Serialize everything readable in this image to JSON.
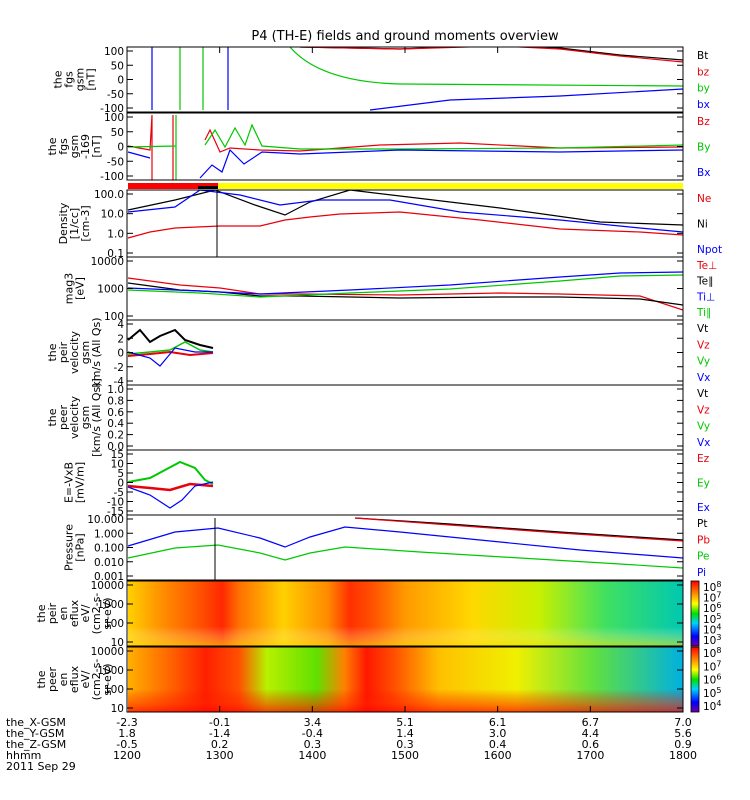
{
  "chart_data": {
    "type": "line",
    "title": "P4 (TH-E) fields and ground moments overview",
    "panels": [
      {
        "ylabel_lines": [
          "the",
          "fgs",
          "gsm",
          "[nT]"
        ],
        "ticks": [
          "100",
          "50",
          "0",
          "-50",
          "-100"
        ],
        "series": [
          {
            "name": "Bt",
            "color": "#000000"
          },
          {
            "name": "bz",
            "color": "#e8000b"
          },
          {
            "name": "by",
            "color": "#00c800"
          },
          {
            "name": "bx",
            "color": "#0000ff"
          }
        ]
      },
      {
        "ylabel_lines": [
          "the",
          "fgs",
          "gsm",
          "-169",
          "[nT]"
        ],
        "ticks": [
          "100",
          "50",
          "0",
          "-50",
          "-100"
        ],
        "series": [
          {
            "name": "Bz",
            "color": "#e8000b"
          },
          {
            "name": "By",
            "color": "#00c800"
          },
          {
            "name": "Bx",
            "color": "#0000ff"
          }
        ]
      },
      {
        "ylabel_lines": [
          "Density",
          "[1/cc]",
          "[cm-3]"
        ],
        "ticks": [
          "100.0",
          "10.0",
          "1.0",
          "0.1"
        ],
        "series": [
          {
            "name": "Ne",
            "color": "#e8000b"
          },
          {
            "name": "Ni",
            "color": "#000000"
          },
          {
            "name": "Npot",
            "color": "#0000ff"
          }
        ]
      },
      {
        "ylabel_lines": [
          "mag3",
          "[eV]"
        ],
        "ticks": [
          "10000",
          "1000",
          "100"
        ],
        "series": [
          {
            "name": "Te⊥",
            "color": "#e8000b"
          },
          {
            "name": "Te∥",
            "color": "#000000"
          },
          {
            "name": "Ti⊥",
            "color": "#0000ff"
          },
          {
            "name": "Ti∥",
            "color": "#00c800"
          }
        ]
      },
      {
        "ylabel_lines": [
          "the",
          "peir",
          "velocity",
          "gsm",
          "km/s (All Qs)"
        ],
        "ticks": [
          "4",
          "2",
          "0",
          "-2",
          "-4"
        ],
        "series": [
          {
            "name": "Vt",
            "color": "#000000"
          },
          {
            "name": "Vz",
            "color": "#e8000b"
          },
          {
            "name": "Vy",
            "color": "#00c800"
          },
          {
            "name": "Vx",
            "color": "#0000ff"
          }
        ]
      },
      {
        "ylabel_lines": [
          "the",
          "peer",
          "velocity",
          "gsm",
          "[km/s (All Qs)]"
        ],
        "ticks": [
          "1.0",
          "0.8",
          "0.6",
          "0.4",
          "0.2",
          "0.0"
        ],
        "series": [
          {
            "name": "Vt",
            "color": "#000000"
          },
          {
            "name": "Vz",
            "color": "#e8000b"
          },
          {
            "name": "Vy",
            "color": "#00c800"
          },
          {
            "name": "Vx",
            "color": "#0000ff"
          }
        ]
      },
      {
        "ylabel_lines": [
          "E=-VxB",
          "[mV/m]"
        ],
        "ticks": [
          "15",
          "10",
          "5",
          "0",
          "-5",
          "-10",
          "-15"
        ],
        "series": [
          {
            "name": "Ez",
            "color": "#e8000b"
          },
          {
            "name": "Ey",
            "color": "#00c800"
          },
          {
            "name": "Ex",
            "color": "#0000ff"
          }
        ]
      },
      {
        "ylabel_lines": [
          "Pressure",
          "[nPa]"
        ],
        "ticks": [
          "10.000",
          "1.000",
          "0.100",
          "0.010",
          "0.001"
        ],
        "series": [
          {
            "name": "Pt",
            "color": "#000000"
          },
          {
            "name": "Pb",
            "color": "#e8000b"
          },
          {
            "name": "Pe",
            "color": "#00c800"
          },
          {
            "name": "Pi",
            "color": "#0000ff"
          }
        ]
      },
      {
        "ylabel_lines": [
          "the",
          "peir",
          "en",
          "eflux",
          "eV/",
          "(cm2-s-",
          "sr-eV)"
        ],
        "ticks": [
          "10000",
          "1000",
          "100",
          "10"
        ],
        "colorbar": [
          "10^8",
          "10^7",
          "10^6",
          "10^5",
          "10^4",
          "10^3"
        ]
      },
      {
        "ylabel_lines": [
          "the",
          "peer",
          "en",
          "eflux",
          "eV/",
          "(cm2-s-",
          "sr-eV)"
        ],
        "ticks": [
          "10000",
          "1000",
          "100",
          "10"
        ],
        "colorbar": [
          "10^8",
          "10^7",
          "10^6",
          "10^5",
          "10^4"
        ]
      }
    ],
    "x_axis": {
      "rows": [
        {
          "label": "the_X-GSM",
          "values": [
            "-2.3",
            "-0.1",
            "3.4",
            "5.1",
            "6.1",
            "6.7",
            "7.0"
          ]
        },
        {
          "label": "the_Y-GSM",
          "values": [
            "1.8",
            "-1.4",
            "-0.4",
            "1.4",
            "3.0",
            "4.4",
            "5.6"
          ]
        },
        {
          "label": "the_Z-GSM",
          "values": [
            "-0.5",
            "0.2",
            "0.3",
            "0.3",
            "0.4",
            "0.6",
            "0.9"
          ]
        },
        {
          "label": "hhmm",
          "values": [
            "1200",
            "1300",
            "1400",
            "1500",
            "1600",
            "1700",
            "1800"
          ]
        }
      ],
      "date": "2011 Sep 29"
    }
  }
}
